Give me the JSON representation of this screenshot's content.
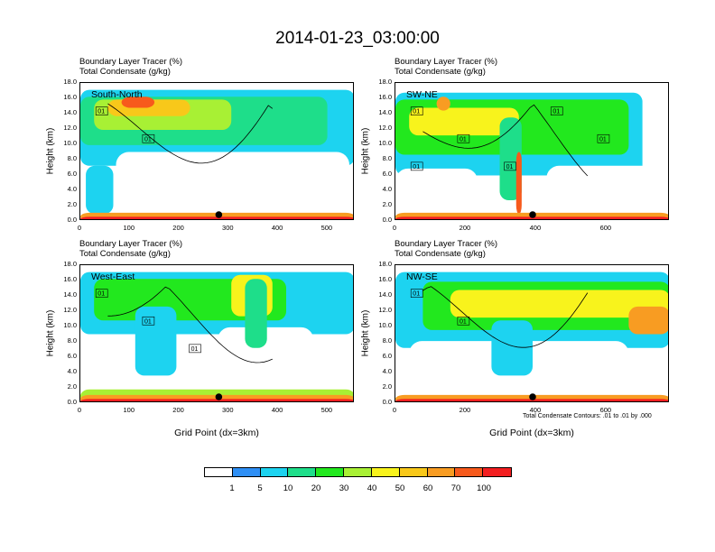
{
  "title": "2014-01-23_03:00:00",
  "chart_data": {
    "type": "heatmap",
    "title": "2014-01-23_03:00:00",
    "colorbar": {
      "labels": [
        "1",
        "5",
        "10",
        "20",
        "30",
        "40",
        "50",
        "60",
        "70",
        "100"
      ],
      "colors": [
        "#ffffff",
        "#2e8ff5",
        "#1dd3f0",
        "#1ede8a",
        "#22e81e",
        "#a8f034",
        "#f8f31c",
        "#f8c81a",
        "#f89c22",
        "#f75a1c",
        "#f21e20"
      ]
    },
    "panels": [
      {
        "name": "South-North",
        "sub1": "Boundary Layer Tracer   (%)",
        "sub2": "Total Condensate   (g/kg)",
        "ylabel": "Height (km)",
        "xlabel": "",
        "xlim": [
          0,
          555
        ],
        "ylim": [
          0,
          18
        ],
        "xticks": [
          "0",
          "100",
          "200",
          "300",
          "400",
          "500"
        ],
        "yticks": [
          "0.0",
          "2.0",
          "4.0",
          "6.0",
          "8.0",
          "10.0",
          "12.0",
          "14.0",
          "16.0",
          "18.0"
        ],
        "contour_labels": [
          "01",
          "01"
        ],
        "marker_x": 280
      },
      {
        "name": "SW-NE",
        "sub1": "Boundary Layer Tracer   (%)",
        "sub2": "Total Condensate   (g/kg)",
        "ylabel": "Height (km)",
        "xlabel": "",
        "xlim": [
          0,
          780
        ],
        "ylim": [
          0,
          18
        ],
        "xticks": [
          "0",
          "200",
          "400",
          "600"
        ],
        "yticks": [
          "0.0",
          "2.0",
          "4.0",
          "6.0",
          "8.0",
          "10.0",
          "12.0",
          "14.0",
          "16.0",
          "18.0"
        ],
        "contour_labels": [
          "01",
          "01",
          "01",
          "01",
          "01",
          "01"
        ],
        "marker_x": 390
      },
      {
        "name": "West-East",
        "sub1": "Boundary Layer Tracer   (%)",
        "sub2": "Total Condensate   (g/kg)",
        "ylabel": "Height (km)",
        "xlabel": "Grid Point (dx=3km)",
        "xlim": [
          0,
          555
        ],
        "ylim": [
          0,
          18
        ],
        "xticks": [
          "0",
          "100",
          "200",
          "300",
          "400",
          "500"
        ],
        "yticks": [
          "0.0",
          "2.0",
          "4.0",
          "6.0",
          "8.0",
          "10.0",
          "12.0",
          "14.0",
          "16.0",
          "18.0"
        ],
        "contour_labels": [
          "01",
          "01",
          "01"
        ],
        "marker_x": 280
      },
      {
        "name": "NW-SE",
        "sub1": "Boundary Layer Tracer   (%)",
        "sub2": "Total Condensate   (g/kg)",
        "ylabel": "Height (km)",
        "xlabel": "Grid Point (dx=3km)",
        "xlim": [
          0,
          780
        ],
        "ylim": [
          0,
          18
        ],
        "xticks": [
          "0",
          "200",
          "400",
          "600"
        ],
        "yticks": [
          "0.0",
          "2.0",
          "4.0",
          "6.0",
          "8.0",
          "10.0",
          "12.0",
          "14.0",
          "16.0",
          "18.0"
        ],
        "contour_labels": [
          "01",
          "01"
        ],
        "marker_x": 390
      }
    ],
    "contour_note": "Total Condensate Contours: .01 to .01 by .000"
  }
}
